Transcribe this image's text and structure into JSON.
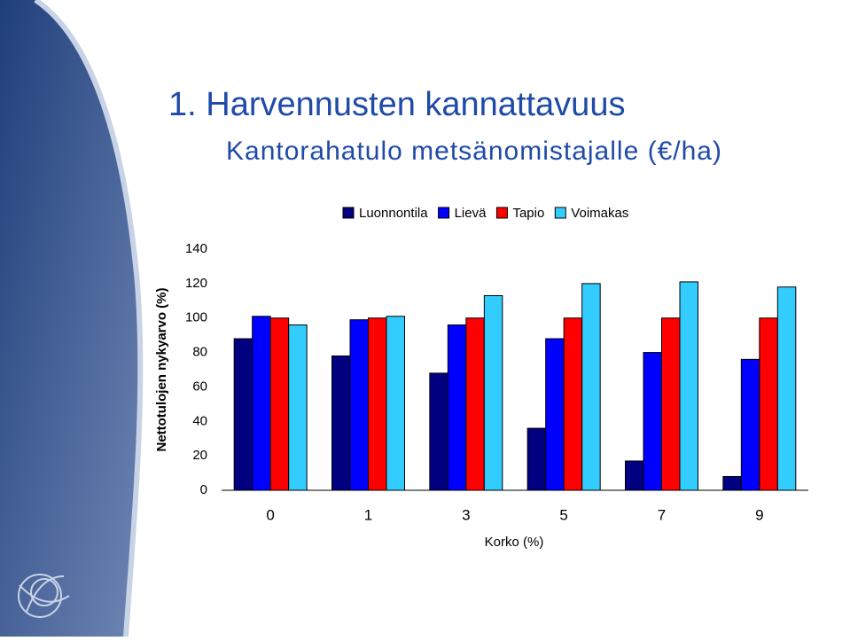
{
  "chart_data": {
    "type": "bar",
    "title": "1. Harvennusten kannattavuus",
    "subtitle": "Kantorahatulo metsänomistajalle (€/ha)",
    "x_label": "Korko (%)",
    "y_label": "Nettotulojen nykyarvo (%)",
    "categories": [
      "0",
      "1",
      "3",
      "5",
      "7",
      "9"
    ],
    "series": [
      {
        "name": "Luonnontila",
        "color": "#000080",
        "values": [
          88,
          78,
          68,
          36,
          17,
          8
        ]
      },
      {
        "name": "Lievä",
        "color": "#0000ff",
        "values": [
          101,
          99,
          96,
          88,
          80,
          76
        ]
      },
      {
        "name": "Tapio",
        "color": "#ff0000",
        "values": [
          100,
          100,
          100,
          100,
          100,
          100
        ]
      },
      {
        "name": "Voimakas",
        "color": "#33ccff",
        "values": [
          96,
          101,
          113,
          120,
          121,
          118
        ]
      }
    ],
    "ylim": [
      0,
      140
    ],
    "yticks": [
      0,
      20,
      40,
      60,
      80,
      100,
      120,
      140
    ],
    "grid": false,
    "legend": "top"
  }
}
